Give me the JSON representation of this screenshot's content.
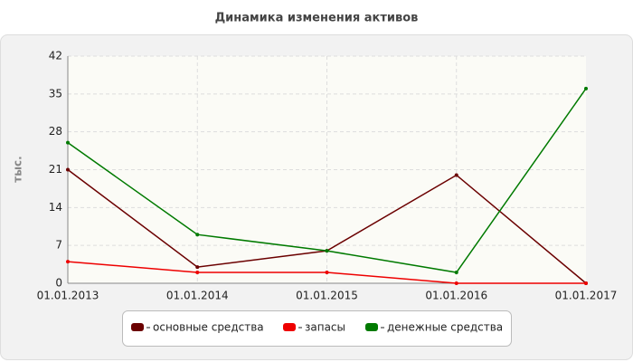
{
  "chart_data": {
    "type": "line",
    "title": "Динамика изменения активов",
    "y_label": "тыс.",
    "categories": [
      "01.01.2013",
      "01.01.2014",
      "01.01.2015",
      "01.01.2016",
      "01.01.2017"
    ],
    "series": [
      {
        "name": "основные средства",
        "color": "#6b0000",
        "values": [
          21,
          3,
          6,
          20,
          0
        ]
      },
      {
        "name": "запасы",
        "color": "#ee0000",
        "values": [
          4,
          2,
          2,
          0,
          0
        ]
      },
      {
        "name": "денежные средства",
        "color": "#007a00",
        "values": [
          26,
          9,
          6,
          2,
          36
        ]
      }
    ],
    "ylim": [
      0,
      42
    ],
    "yticks": [
      0,
      7,
      14,
      21,
      28,
      35,
      42
    ],
    "grid": true
  }
}
